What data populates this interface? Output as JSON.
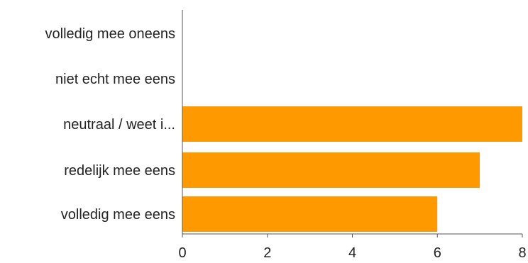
{
  "chart_data": {
    "type": "bar",
    "orientation": "horizontal",
    "categories": [
      "volledig mee oneens",
      "niet echt mee eens",
      "neutraal / weet i...",
      "redelijk mee eens",
      "volledig mee eens"
    ],
    "values": [
      0,
      0,
      8,
      7,
      6
    ],
    "xlim": [
      0,
      8
    ],
    "xticks": [
      "0",
      "2",
      "4",
      "6",
      "8"
    ],
    "title": "",
    "xlabel": "",
    "ylabel": "",
    "grid": false,
    "legend": "none",
    "bar_color": "#ff9900",
    "axis_color": "#555555"
  }
}
